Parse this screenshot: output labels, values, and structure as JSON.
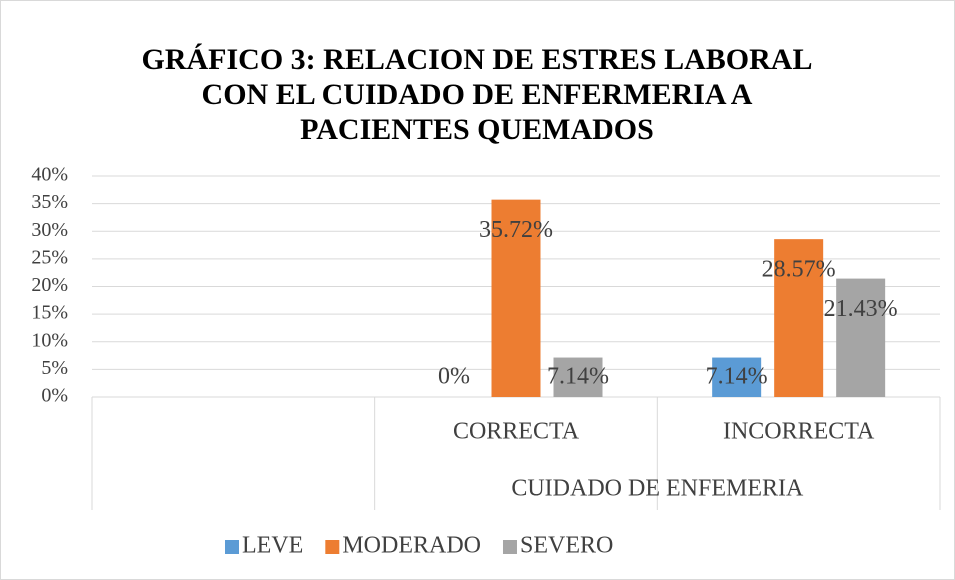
{
  "chart_data": {
    "type": "bar",
    "title": "GRÁFICO 3: RELACION DE ESTRES LABORAL CON EL CUIDADO DE ENFERMERIA A PACIENTES QUEMADOS",
    "categories": [
      null,
      "CORRECTA",
      "INCORRECTA"
    ],
    "category_group": "CUIDADO DE ENFEMERIA",
    "series": [
      {
        "name": "LEVE",
        "color": "#5b9bd5",
        "values": [
          null,
          0,
          7.14
        ],
        "value_labels": [
          null,
          "0%",
          "7.14%"
        ]
      },
      {
        "name": "MODERADO",
        "color": "#ed7d31",
        "values": [
          null,
          35.72,
          28.57
        ],
        "value_labels": [
          null,
          "35.72%",
          "28.57%"
        ]
      },
      {
        "name": "SEVERO",
        "color": "#a5a5a5",
        "values": [
          null,
          7.14,
          21.43
        ],
        "value_labels": [
          null,
          "7.14%",
          "21.43%"
        ]
      }
    ],
    "ylim": [
      0,
      40
    ],
    "yticks": [
      {
        "value": 0,
        "label": "0%"
      },
      {
        "value": 5,
        "label": "5%"
      },
      {
        "value": 10,
        "label": "10%"
      },
      {
        "value": 15,
        "label": "15%"
      },
      {
        "value": 20,
        "label": "20%"
      },
      {
        "value": 25,
        "label": "25%"
      },
      {
        "value": 30,
        "label": "30%"
      },
      {
        "value": 35,
        "label": "35%"
      },
      {
        "value": 40,
        "label": "40%"
      }
    ],
    "grid": true,
    "legend": "bottom"
  }
}
